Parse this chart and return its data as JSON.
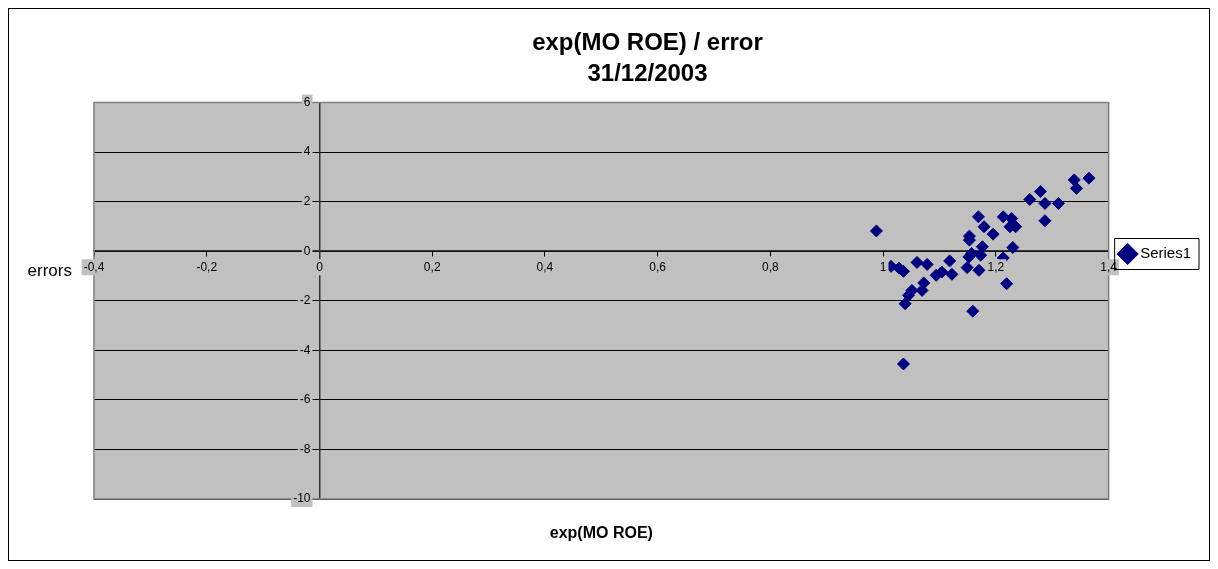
{
  "chart_data": {
    "type": "scatter",
    "title": "exp(MO ROE) / error",
    "subtitle": "31/12/2003",
    "xlabel": "exp(MO ROE)",
    "ylabel": "errors",
    "xlim": [
      -0.4,
      1.4
    ],
    "xticks": [
      {
        "value": -0.4,
        "label": "-0,4"
      },
      {
        "value": -0.2,
        "label": "-0,2"
      },
      0,
      {
        "value": 0.2,
        "label": "0,2"
      },
      {
        "value": 0.4,
        "label": "0,4"
      },
      {
        "value": 0.6,
        "label": "0,6"
      },
      {
        "value": 0.8,
        "label": "0,8"
      },
      1,
      {
        "value": 1.2,
        "label": "1,2"
      },
      {
        "value": 1.4,
        "label": "1,4"
      }
    ],
    "ylim": [
      -10,
      6
    ],
    "yticks": [
      -10,
      -8,
      -6,
      -4,
      -2,
      0,
      2,
      4,
      6
    ],
    "grid": "y",
    "legend": "right",
    "marker": "diamond",
    "series": [
      {
        "name": "Series1",
        "color": "#000080",
        "x": [
          0.988,
          1.014,
          1.028,
          1.036,
          1.06,
          1.078,
          1.118,
          1.036,
          1.039,
          1.045,
          1.051,
          1.069,
          1.072,
          1.094,
          1.104,
          1.122,
          1.149,
          1.17,
          1.159,
          1.152,
          1.157,
          1.173,
          1.176,
          1.153,
          1.153,
          1.179,
          1.169,
          1.195,
          1.213,
          1.219,
          1.225,
          1.235,
          1.228,
          1.213,
          1.23,
          1.219,
          1.26,
          1.279,
          1.287,
          1.287,
          1.311,
          1.339,
          1.343,
          1.365
        ],
        "values": [
          0.82,
          -0.61,
          -0.68,
          -0.81,
          -0.45,
          -0.53,
          -0.39,
          -4.55,
          -2.12,
          -1.78,
          -1.58,
          -1.58,
          -1.28,
          -0.97,
          -0.84,
          -0.93,
          -0.66,
          -0.77,
          -2.42,
          -0.23,
          -0.09,
          -0.16,
          0.18,
          0.61,
          0.45,
          0.99,
          1.39,
          0.69,
          1.39,
          null,
          0.99,
          0.99,
          1.32,
          -0.27,
          0.15,
          -1.31,
          2.09,
          2.41,
          1.93,
          1.23,
          1.93,
          2.88,
          2.54,
          2.95
        ]
      }
    ]
  }
}
